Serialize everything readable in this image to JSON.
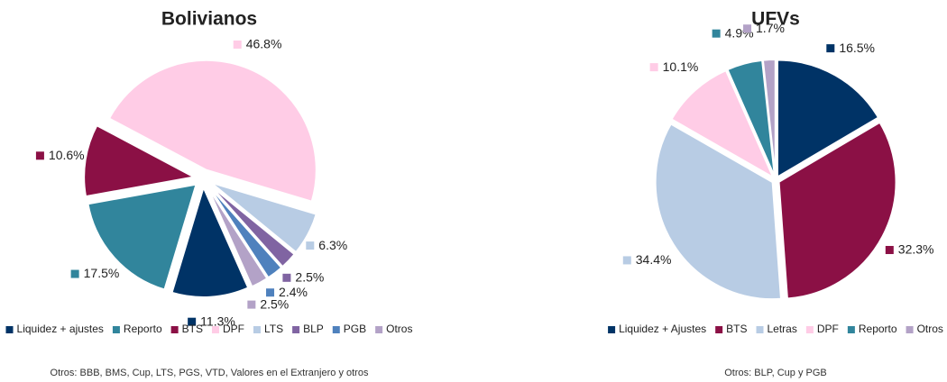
{
  "chart_data": [
    {
      "type": "pie",
      "title": "Bolivianos",
      "categories": [
        "Liquidez + ajustes",
        "Reporto",
        "BTS",
        "DPF",
        "LTS",
        "BLP",
        "PGB",
        "Otros"
      ],
      "values": [
        11.3,
        17.5,
        10.6,
        46.8,
        6.3,
        2.5,
        2.4,
        2.5
      ],
      "value_labels": [
        "11.3%",
        "17.5%",
        "10.6%",
        "46.8%",
        "6.3%",
        "2.5%",
        "2.4%",
        "2.5%"
      ],
      "colors": [
        "#003366",
        "#31859c",
        "#8b1045",
        "#ffcce6",
        "#b8cce4",
        "#8064a2",
        "#4f81bd",
        "#b3a2c7"
      ],
      "note": "Otros: BBB, BMS, Cup, LTS, PGS, VTD, Valores en el Extranjero y otros"
    },
    {
      "type": "pie",
      "title": "UFVs",
      "categories": [
        "Liquidez + Ajustes",
        "BTS",
        "Letras",
        "DPF",
        "Reporto",
        "Otros"
      ],
      "values": [
        16.5,
        32.3,
        34.4,
        10.1,
        4.9,
        1.7
      ],
      "value_labels": [
        "16.5%",
        "32.3%",
        "34.4%",
        "10.1%",
        "4.9%",
        "1.7%"
      ],
      "colors": [
        "#003366",
        "#8b1045",
        "#b8cce4",
        "#ffcce6",
        "#31859c",
        "#b3a2c7"
      ],
      "note": "Otros: BLP, Cup y PGB"
    }
  ]
}
